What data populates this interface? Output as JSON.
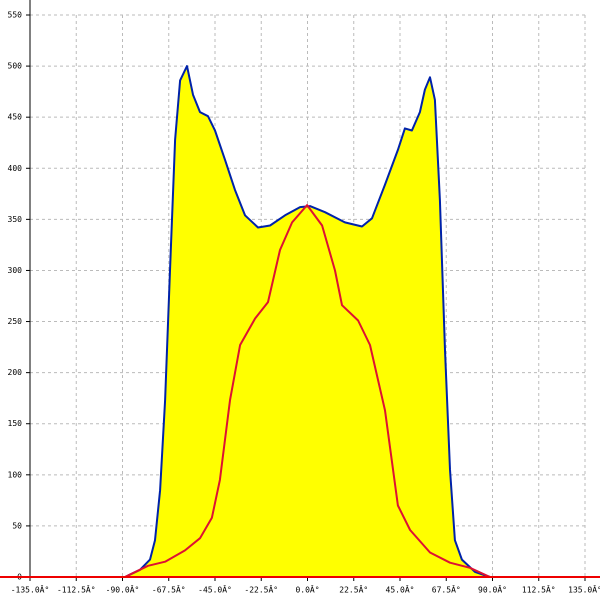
{
  "chart_data": {
    "type": "area-line",
    "xlim": [
      -135,
      135
    ],
    "ylim": [
      0,
      550
    ],
    "xticks": [
      {
        "value": -135,
        "label": "-135.0Â°"
      },
      {
        "value": -112.5,
        "label": "-112.5Â°"
      },
      {
        "value": -90,
        "label": "-90.0Â°"
      },
      {
        "value": -67.5,
        "label": "-67.5Â°"
      },
      {
        "value": -45,
        "label": "-45.0Â°"
      },
      {
        "value": -22.5,
        "label": "-22.5Â°"
      },
      {
        "value": 0,
        "label": "0.0Â°"
      },
      {
        "value": 22.5,
        "label": "22.5Â°"
      },
      {
        "value": 45,
        "label": "45.0Â°"
      },
      {
        "value": 67.5,
        "label": "67.5Â°"
      },
      {
        "value": 90,
        "label": "90.0Â°"
      },
      {
        "value": 112.5,
        "label": "112.5Â°"
      },
      {
        "value": 135,
        "label": "135.0Â°"
      }
    ],
    "yticks": [
      0,
      50,
      100,
      150,
      200,
      250,
      300,
      350,
      400,
      450,
      500,
      550
    ],
    "grid": true,
    "series": [
      {
        "color": "#0022aa",
        "fill": "#ffff00",
        "x": [
          -88.8,
          -81.5,
          -76.6,
          -74.2,
          -71.7,
          -69.3,
          -66.9,
          -64.4,
          -62.0,
          -58.6,
          -55.7,
          -52.3,
          -48.4,
          -45.0,
          -40.1,
          -35.3,
          -30.4,
          -24.1,
          -18.2,
          -10.9,
          -3.6,
          1.2,
          8.5,
          18.2,
          26.5,
          31.4,
          37.7,
          44.0,
          47.4,
          50.8,
          54.7,
          57.1,
          59.6,
          62.0,
          64.4,
          66.9,
          69.3,
          71.7,
          75.1,
          81.5,
          88.8
        ],
        "values": [
          0,
          7,
          17,
          36,
          85,
          173,
          300,
          428,
          486,
          500,
          472,
          455,
          451,
          437,
          408,
          379,
          354,
          342,
          344,
          354,
          362,
          363,
          357,
          347,
          343,
          351,
          384,
          418,
          439,
          437,
          455,
          477,
          489,
          467,
          369,
          222,
          105,
          36,
          17,
          5,
          0
        ]
      },
      {
        "color": "#dd1133",
        "x": [
          -88.8,
          -77.6,
          -69.3,
          -59.6,
          -52.3,
          -46.5,
          -42.6,
          -37.7,
          -32.8,
          -25.5,
          -19.2,
          -13.4,
          -7.5,
          -0.2,
          7.1,
          13.4,
          16.8,
          24.6,
          30.4,
          37.7,
          44.0,
          49.9,
          59.6,
          69.3,
          79.0,
          88.8
        ],
        "values": [
          0,
          11,
          15,
          26,
          38,
          58,
          95,
          173,
          227,
          253,
          269,
          320,
          347,
          364,
          344,
          300,
          266,
          251,
          227,
          163,
          70,
          46,
          24,
          14,
          9,
          0
        ]
      }
    ]
  }
}
